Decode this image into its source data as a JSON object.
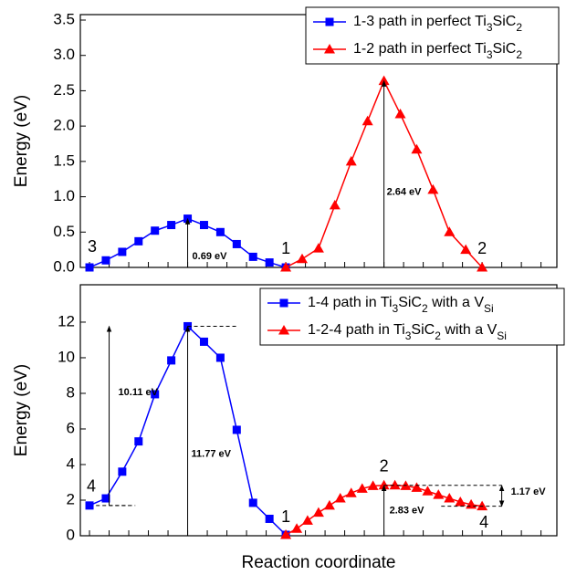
{
  "chart_data": [
    {
      "type": "line",
      "ylabel": "Energy (eV)",
      "legend": "upper right",
      "xlim": [
        -0.56,
        28.57
      ],
      "ylim": [
        0,
        3.5
      ],
      "xticks": [
        0,
        1.2,
        2.4,
        3.6,
        4.8,
        6,
        7.2,
        8.4,
        9.6,
        10.8,
        12,
        13.2,
        14.4,
        15.6,
        16.8,
        18,
        19.2,
        20.4,
        21.6,
        22.8,
        24,
        25.2,
        26.4,
        27.6
      ],
      "yticks": [
        {
          "value": 0,
          "label": "0.0"
        },
        {
          "value": 0.5,
          "label": "0.5"
        },
        {
          "value": 1,
          "label": "1.0"
        },
        {
          "value": 1.5,
          "label": "1.5"
        },
        {
          "value": 2,
          "label": "2.0"
        },
        {
          "value": 2.5,
          "label": "2.5"
        },
        {
          "value": 3,
          "label": "3.0"
        },
        {
          "value": 3.5,
          "label": "3.5"
        }
      ],
      "series": [
        {
          "name": "1-3 path in perfect Ti3SiC2",
          "color": "#0000ff",
          "marker": "square",
          "x": [
            0,
            1,
            2,
            3,
            4,
            5,
            6,
            7,
            8,
            9,
            10,
            11,
            12
          ],
          "values": [
            0,
            0.1,
            0.22,
            0.37,
            0.52,
            0.6,
            0.69,
            0.6,
            0.5,
            0.33,
            0.15,
            0.07,
            0
          ]
        },
        {
          "name": "1-2 path in perfect Ti3SiC2",
          "color": "#ff0000",
          "marker": "triangle",
          "x": [
            12,
            13,
            14,
            15,
            16,
            17,
            18,
            19,
            20,
            21,
            22,
            23,
            24
          ],
          "values": [
            0,
            0.12,
            0.27,
            0.88,
            1.5,
            2.07,
            2.64,
            2.17,
            1.67,
            1.1,
            0.5,
            0.25,
            0
          ]
        }
      ],
      "annotations": [
        "0.69 eV",
        "2.64 eV"
      ],
      "point_labels": [
        "3",
        "1",
        "2"
      ]
    },
    {
      "type": "line",
      "ylabel": "Energy (eV)",
      "xlabel": "Reaction coordinate",
      "legend": "upper right",
      "xlim": [
        -0.56,
        28.57
      ],
      "ylim": [
        0,
        14.1
      ],
      "xticks": [
        0,
        1.2,
        2.4,
        3.6,
        4.8,
        6,
        7.2,
        8.4,
        9.6,
        10.8,
        12,
        13.2,
        14.4,
        15.6,
        16.8,
        18,
        19.2,
        20.4,
        21.6,
        22.8,
        24,
        25.2,
        26.4,
        27.6
      ],
      "yticks": [
        0,
        2,
        4,
        6,
        8,
        10,
        12
      ],
      "series": [
        {
          "name": "1-4 path in Ti3SiC2 with a VSi",
          "color": "#0000ff",
          "marker": "square",
          "x": [
            0,
            1,
            2,
            3,
            4,
            5,
            6,
            7,
            8,
            9,
            10,
            11,
            12
          ],
          "values": [
            1.7,
            2.1,
            3.6,
            5.3,
            7.95,
            9.85,
            11.77,
            10.9,
            10.0,
            5.95,
            1.85,
            0.95,
            0.05
          ]
        },
        {
          "name": "1-2-4 path in Ti3SiC2 with a VSi",
          "color": "#ff0000",
          "marker": "triangle",
          "x": [
            12,
            12.67,
            13.33,
            14,
            14.67,
            15.33,
            16,
            16.67,
            17.33,
            18,
            18.67,
            19.33,
            20,
            20.67,
            21.33,
            22,
            22.67,
            23.33,
            24
          ],
          "values": [
            0.05,
            0.4,
            0.85,
            1.3,
            1.7,
            2.1,
            2.4,
            2.65,
            2.8,
            2.83,
            2.83,
            2.8,
            2.7,
            2.5,
            2.3,
            2.1,
            1.9,
            1.75,
            1.66
          ]
        }
      ],
      "annotations": [
        "10.11 eV",
        "11.77 eV",
        "2.83 eV",
        "1.17 eV"
      ],
      "point_labels": [
        "4",
        "1",
        "2",
        "4"
      ]
    }
  ]
}
